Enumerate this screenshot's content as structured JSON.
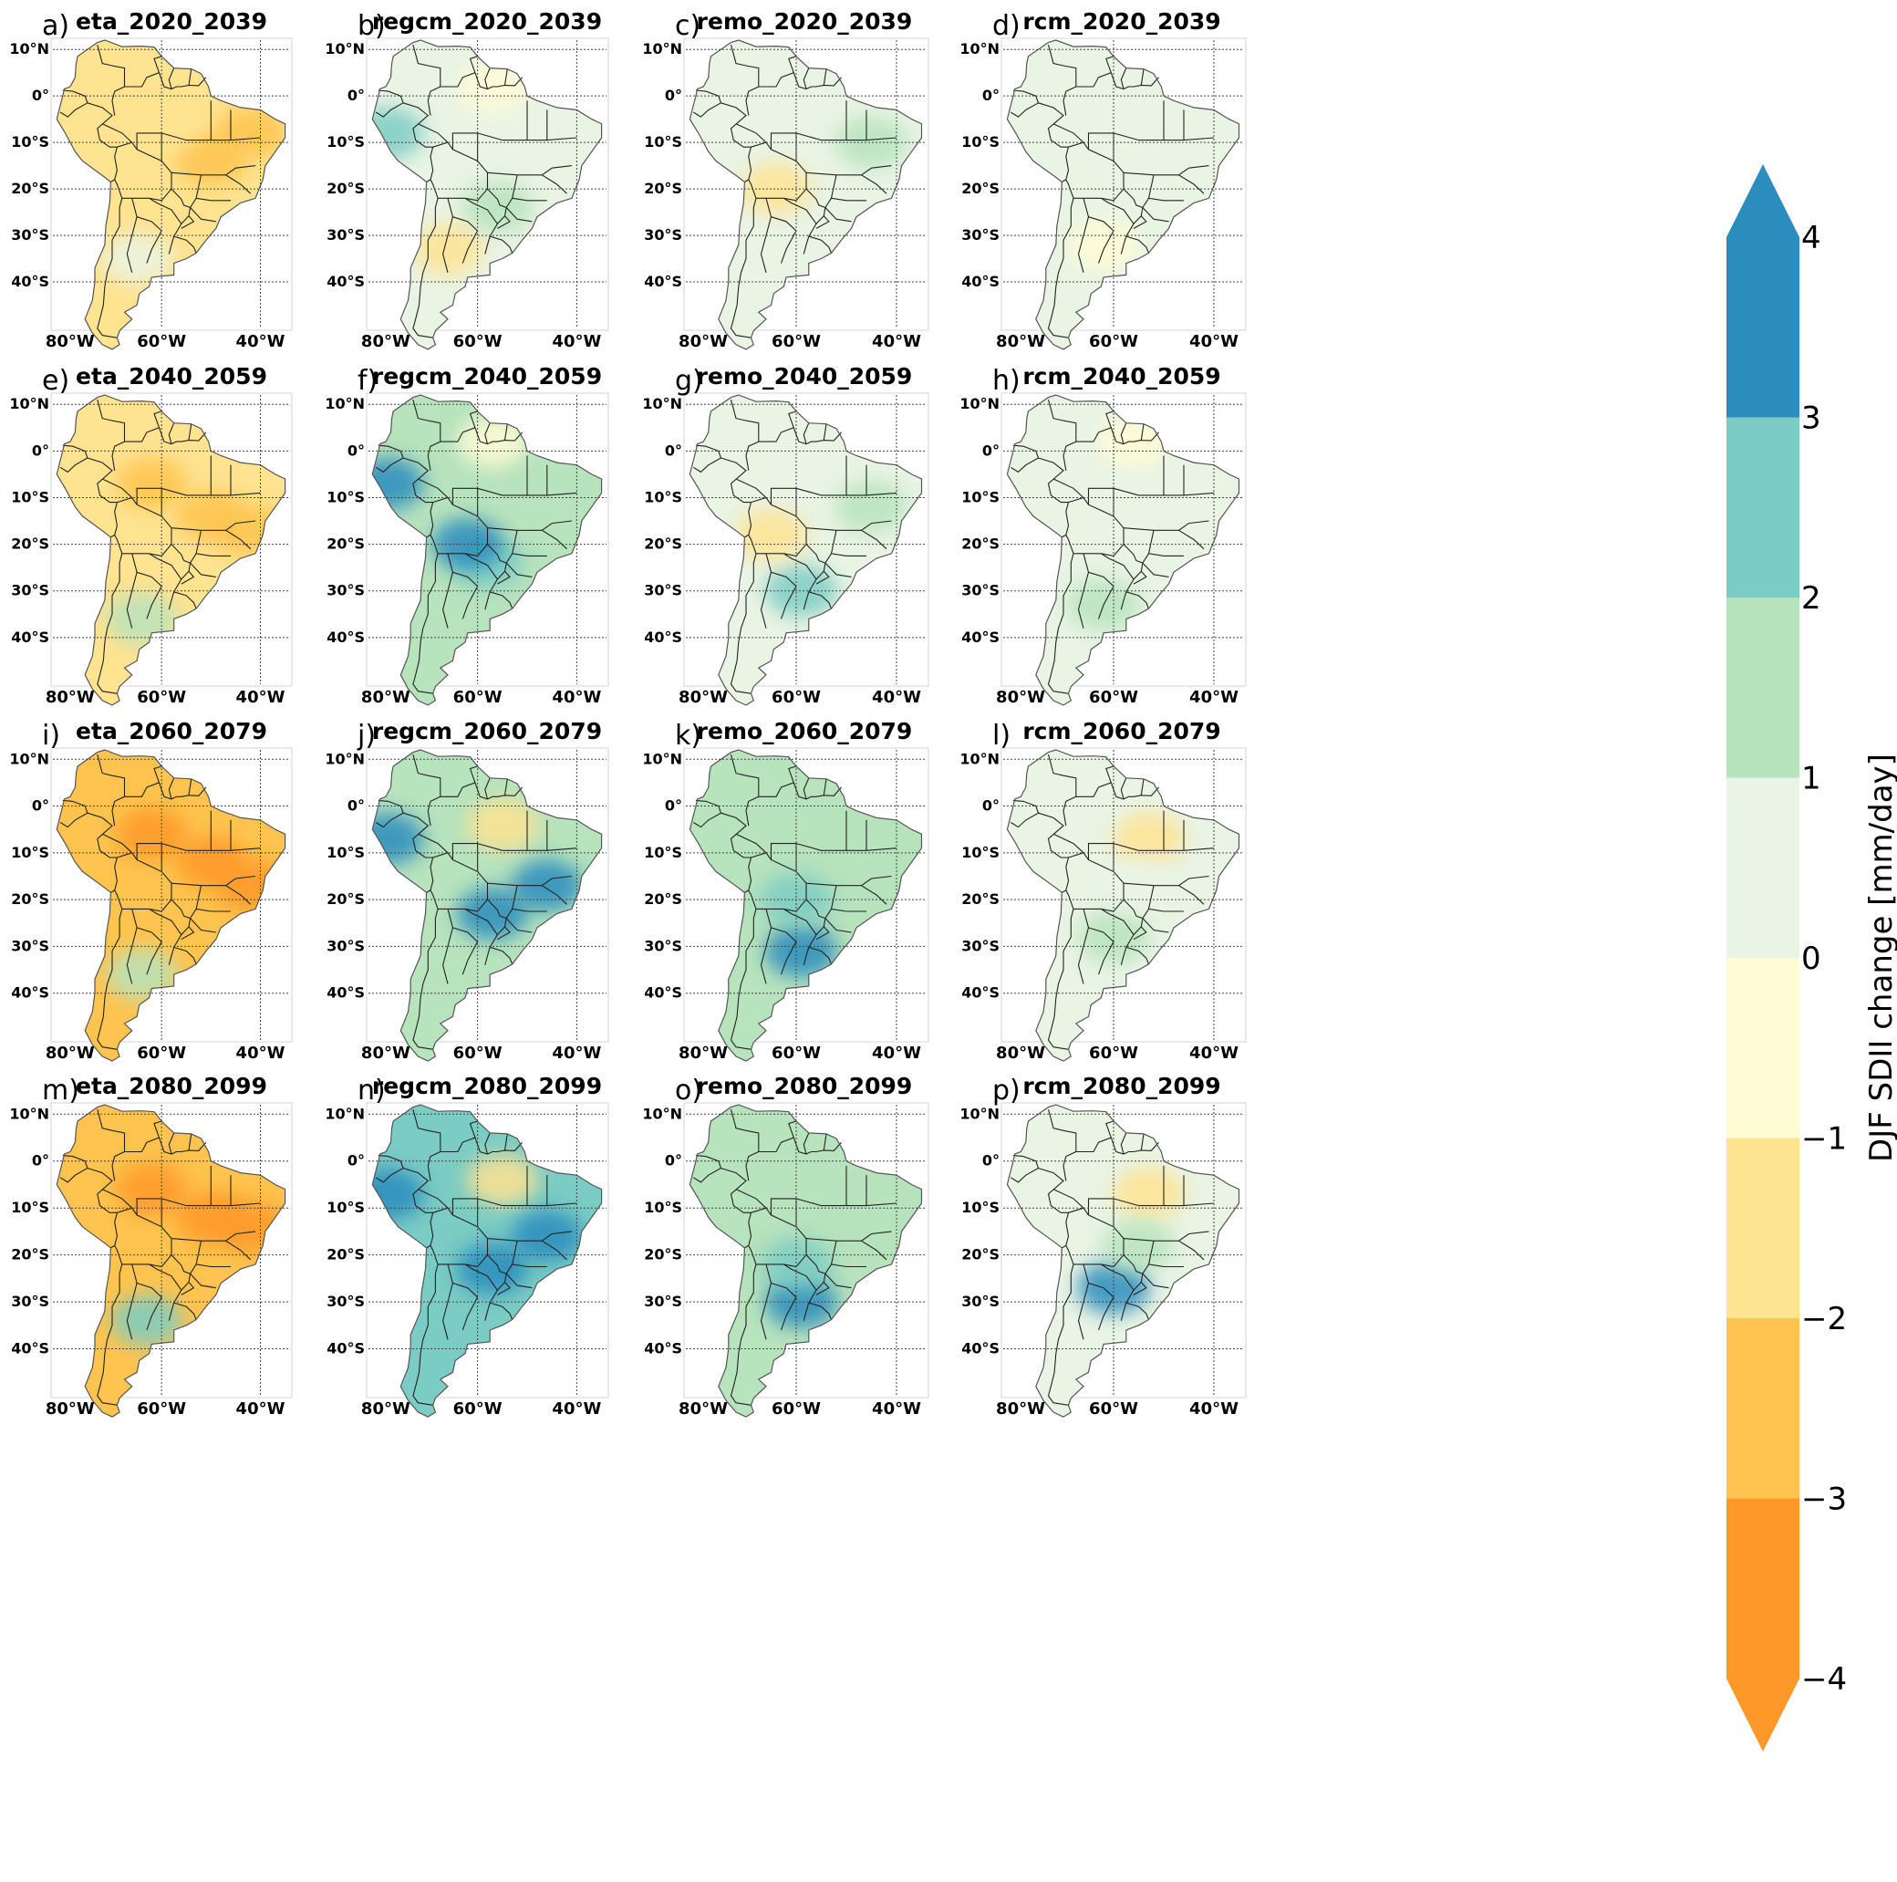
{
  "chart_data": {
    "type": "heatmap",
    "description_variable": "DJF SDII change [mm/day]",
    "colorbar": {
      "label": "DJF SDII change [mm/day]",
      "ticks": [
        "4",
        "3",
        "2",
        "1",
        "0",
        "−1",
        "−2",
        "−3",
        "−4"
      ],
      "bins": [
        {
          "range": [
            3,
            4
          ],
          "color": "#2b8cbe"
        },
        {
          "range": [
            2,
            3
          ],
          "color": "#7bccc4"
        },
        {
          "range": [
            1,
            2
          ],
          "color": "#b7e3bd"
        },
        {
          "range": [
            0,
            1
          ],
          "color": "#e9f4e4"
        },
        {
          "range": [
            -1,
            0
          ],
          "color": "#fffcd5"
        },
        {
          "range": [
            -2,
            -1
          ],
          "color": "#fee391"
        },
        {
          "range": [
            -3,
            -2
          ],
          "color": "#fec44f"
        },
        {
          "range": [
            -4,
            -3
          ],
          "color": "#fe9929"
        }
      ],
      "extend": "both",
      "top_arrow_color": "#2b8cbe",
      "bottom_arrow_color": "#fe9929"
    },
    "lat_labels": [
      "10°N",
      "0°",
      "10°S",
      "20°S",
      "30°S",
      "40°S"
    ],
    "lat_values": [
      10,
      0,
      -10,
      -20,
      -30,
      -40
    ],
    "lon_labels": [
      "80°W",
      "60°W",
      "40°W"
    ],
    "lon_values": [
      -80,
      -60,
      -40
    ],
    "map_extent": {
      "lon": [
        -82,
        -34
      ],
      "lat": [
        -50,
        12
      ]
    },
    "panels": [
      {
        "letter": "a)",
        "title": "eta_2020_2039",
        "model": "eta",
        "period": "2020_2039",
        "dominant_change": -1.5,
        "features": [
          {
            "region": "central_brazil",
            "lon": -50,
            "lat": -14,
            "value": -2.5
          },
          {
            "region": "northeast",
            "lon": -42,
            "lat": -8,
            "value": -2.5
          },
          {
            "region": "amazon",
            "lon": -60,
            "lat": -6,
            "value": -1.5
          },
          {
            "region": "south",
            "lon": -65,
            "lat": -35,
            "value": 0.5
          }
        ]
      },
      {
        "letter": "b)",
        "title": "regcm_2020_2039",
        "model": "regcm",
        "period": "2020_2039",
        "dominant_change": 0.5,
        "features": [
          {
            "region": "la_plata",
            "lon": -56,
            "lat": -24,
            "value": 1.5
          },
          {
            "region": "andes_west",
            "lon": -78,
            "lat": -8,
            "value": 2.5
          },
          {
            "region": "north",
            "lon": -57,
            "lat": 2,
            "value": -0.5
          },
          {
            "region": "argentina",
            "lon": -66,
            "lat": -33,
            "value": -1.5
          }
        ]
      },
      {
        "letter": "c)",
        "title": "remo_2020_2039",
        "model": "remo",
        "period": "2020_2039",
        "dominant_change": 0.5,
        "features": [
          {
            "region": "central",
            "lon": -55,
            "lat": -15,
            "value": 0.5
          },
          {
            "region": "bolivia",
            "lon": -64,
            "lat": -20,
            "value": -1.5
          },
          {
            "region": "east",
            "lon": -45,
            "lat": -10,
            "value": 1.5
          }
        ]
      },
      {
        "letter": "d)",
        "title": "rcm_2020_2039",
        "model": "rcm",
        "period": "2020_2039",
        "dominant_change": 0.2,
        "features": [
          {
            "region": "central",
            "lon": -55,
            "lat": -15,
            "value": 0.3
          },
          {
            "region": "south",
            "lon": -62,
            "lat": -32,
            "value": -0.5
          }
        ]
      },
      {
        "letter": "e)",
        "title": "eta_2040_2059",
        "model": "eta",
        "period": "2040_2059",
        "dominant_change": -2.0,
        "features": [
          {
            "region": "amazon",
            "lon": -62,
            "lat": -7,
            "value": -2.5
          },
          {
            "region": "central_brazil",
            "lon": -50,
            "lat": -14,
            "value": -2.5
          },
          {
            "region": "northeast",
            "lon": -42,
            "lat": -17,
            "value": -2.5
          },
          {
            "region": "south",
            "lon": -64,
            "lat": -36,
            "value": 1.5
          }
        ]
      },
      {
        "letter": "f)",
        "title": "regcm_2040_2059",
        "model": "regcm",
        "period": "2040_2059",
        "dominant_change": 1.0,
        "features": [
          {
            "region": "la_plata",
            "lon": -58,
            "lat": -24,
            "value": 2.5
          },
          {
            "region": "paraguay",
            "lon": -62,
            "lat": -20,
            "value": 3.5
          },
          {
            "region": "andes_west",
            "lon": -78,
            "lat": -7,
            "value": 3.5
          },
          {
            "region": "north",
            "lon": -57,
            "lat": 2,
            "value": -0.5
          }
        ]
      },
      {
        "letter": "g)",
        "title": "remo_2040_2059",
        "model": "remo",
        "period": "2040_2059",
        "dominant_change": 0.8,
        "features": [
          {
            "region": "uruguay",
            "lon": -59,
            "lat": -30,
            "value": 2.5
          },
          {
            "region": "east",
            "lon": -45,
            "lat": -12,
            "value": 1.5
          },
          {
            "region": "bolivia",
            "lon": -65,
            "lat": -18,
            "value": -1.5
          }
        ]
      },
      {
        "letter": "h)",
        "title": "rcm_2040_2059",
        "model": "rcm",
        "period": "2040_2059",
        "dominant_change": 0.5,
        "features": [
          {
            "region": "central",
            "lon": -55,
            "lat": -18,
            "value": 0.5
          },
          {
            "region": "south",
            "lon": -62,
            "lat": -33,
            "value": 1.5
          },
          {
            "region": "north",
            "lon": -56,
            "lat": 2,
            "value": -0.5
          }
        ]
      },
      {
        "letter": "i)",
        "title": "eta_2060_2079",
        "model": "eta",
        "period": "2060_2079",
        "dominant_change": -2.5,
        "features": [
          {
            "region": "amazon",
            "lon": -62,
            "lat": -6,
            "value": -3.5
          },
          {
            "region": "central_brazil",
            "lon": -50,
            "lat": -12,
            "value": -3.5
          },
          {
            "region": "northeast",
            "lon": -42,
            "lat": -17,
            "value": -3.5
          },
          {
            "region": "south",
            "lon": -64,
            "lat": -36,
            "value": 1.5
          }
        ]
      },
      {
        "letter": "j)",
        "title": "regcm_2060_2079",
        "model": "regcm",
        "period": "2060_2079",
        "dominant_change": 1.5,
        "features": [
          {
            "region": "la_plata",
            "lon": -57,
            "lat": -23,
            "value": 3.5
          },
          {
            "region": "southeast",
            "lon": -46,
            "lat": -17,
            "value": 3.5
          },
          {
            "region": "north",
            "lon": -55,
            "lat": -4,
            "value": -1.5
          },
          {
            "region": "andes_west",
            "lon": -78,
            "lat": -7,
            "value": 3.5
          }
        ]
      },
      {
        "letter": "k)",
        "title": "remo_2060_2079",
        "model": "remo",
        "period": "2060_2079",
        "dominant_change": 1.0,
        "features": [
          {
            "region": "uruguay",
            "lon": -59,
            "lat": -31,
            "value": 3.5
          },
          {
            "region": "paraguay",
            "lon": -60,
            "lat": -20,
            "value": 2.5
          },
          {
            "region": "east",
            "lon": -45,
            "lat": -10,
            "value": 1.5
          }
        ]
      },
      {
        "letter": "l)",
        "title": "rcm_2060_2079",
        "model": "rcm",
        "period": "2060_2079",
        "dominant_change": 0.5,
        "features": [
          {
            "region": "south",
            "lon": -60,
            "lat": -28,
            "value": 1.5
          },
          {
            "region": "north",
            "lon": -53,
            "lat": -7,
            "value": -1.5
          },
          {
            "region": "central",
            "lon": -55,
            "lat": -17,
            "value": 0.5
          }
        ]
      },
      {
        "letter": "m)",
        "title": "eta_2080_2099",
        "model": "eta",
        "period": "2080_2099",
        "dominant_change": -3.0,
        "features": [
          {
            "region": "amazon",
            "lon": -62,
            "lat": -6,
            "value": -3.5
          },
          {
            "region": "central_brazil",
            "lon": -50,
            "lat": -12,
            "value": -3.5
          },
          {
            "region": "northeast",
            "lon": -42,
            "lat": -14,
            "value": -3.5
          },
          {
            "region": "south",
            "lon": -63,
            "lat": -34,
            "value": 2.5
          }
        ]
      },
      {
        "letter": "n)",
        "title": "regcm_2080_2099",
        "model": "regcm",
        "period": "2080_2099",
        "dominant_change": 2.0,
        "features": [
          {
            "region": "la_plata",
            "lon": -57,
            "lat": -23,
            "value": 3.5
          },
          {
            "region": "southeast",
            "lon": -46,
            "lat": -16,
            "value": 3.5
          },
          {
            "region": "north",
            "lon": -55,
            "lat": -4,
            "value": -1.5
          },
          {
            "region": "andes_west",
            "lon": -78,
            "lat": -7,
            "value": 3.5
          }
        ]
      },
      {
        "letter": "o)",
        "title": "remo_2080_2099",
        "model": "remo",
        "period": "2080_2099",
        "dominant_change": 1.5,
        "features": [
          {
            "region": "uruguay",
            "lon": -59,
            "lat": -30,
            "value": 3.5
          },
          {
            "region": "paraguay",
            "lon": -60,
            "lat": -22,
            "value": 2.5
          },
          {
            "region": "east",
            "lon": -44,
            "lat": -11,
            "value": 1.5
          }
        ]
      },
      {
        "letter": "p)",
        "title": "rcm_2080_2099",
        "model": "rcm",
        "period": "2080_2099",
        "dominant_change": 0.8,
        "features": [
          {
            "region": "south",
            "lon": -60,
            "lat": -27,
            "value": 3.5
          },
          {
            "region": "north",
            "lon": -53,
            "lat": -7,
            "value": -1.5
          },
          {
            "region": "central",
            "lon": -55,
            "lat": -18,
            "value": 1.5
          }
        ]
      }
    ]
  }
}
